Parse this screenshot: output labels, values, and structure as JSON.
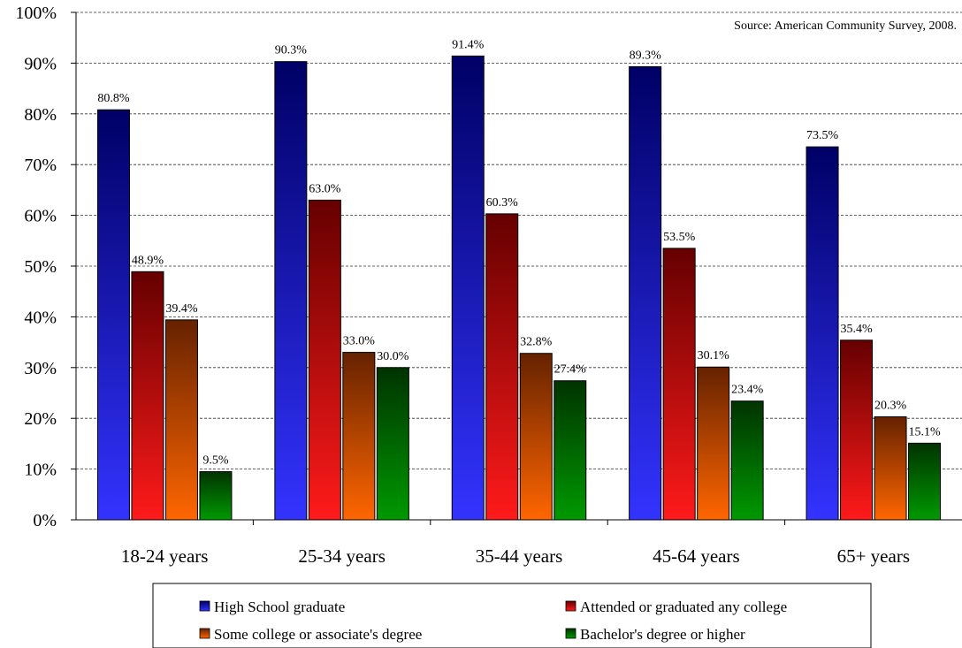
{
  "chart_data": {
    "type": "bar",
    "source_note": "Source: American Community Survey, 2008.",
    "categories": [
      "18-24 years",
      "25-34 years",
      "35-44 years",
      "45-64 years",
      "65+ years"
    ],
    "series": [
      {
        "name": "High School graduate",
        "values": [
          80.8,
          90.3,
          91.4,
          89.3,
          73.5
        ],
        "labels": [
          "80.8%",
          "90.3%",
          "91.4%",
          "89.3%",
          "73.5%"
        ],
        "color_top": "#000066",
        "color_bottom": "#3333ff"
      },
      {
        "name": "Attended or graduated any college",
        "values": [
          48.9,
          63.0,
          60.3,
          53.5,
          35.4
        ],
        "labels": [
          "48.9%",
          "63.0%",
          "60.3%",
          "53.5%",
          "35.4%"
        ],
        "color_top": "#660000",
        "color_bottom": "#ff1a1a"
      },
      {
        "name": "Some college or associate's degree",
        "values": [
          39.4,
          33.0,
          32.8,
          30.1,
          20.3
        ],
        "labels": [
          "39.4%",
          "33.0%",
          "32.8%",
          "30.1%",
          "20.3%"
        ],
        "color_top": "#662200",
        "color_bottom": "#ff6600"
      },
      {
        "name": "Bachelor's degree or higher",
        "values": [
          9.5,
          30.0,
          27.4,
          23.4,
          15.1
        ],
        "labels": [
          "9.5%",
          "30.0%",
          "27.4%",
          "23.4%",
          "15.1%"
        ],
        "color_top": "#003300",
        "color_bottom": "#009900"
      }
    ],
    "ylim": [
      0,
      100
    ],
    "yticks": [
      0,
      10,
      20,
      30,
      40,
      50,
      60,
      70,
      80,
      90,
      100
    ],
    "ytick_labels": [
      "0%",
      "10%",
      "20%",
      "30%",
      "40%",
      "50%",
      "60%",
      "70%",
      "80%",
      "90%",
      "100%"
    ],
    "grid": true,
    "grid_style": "dashed",
    "legend_position": "bottom"
  }
}
